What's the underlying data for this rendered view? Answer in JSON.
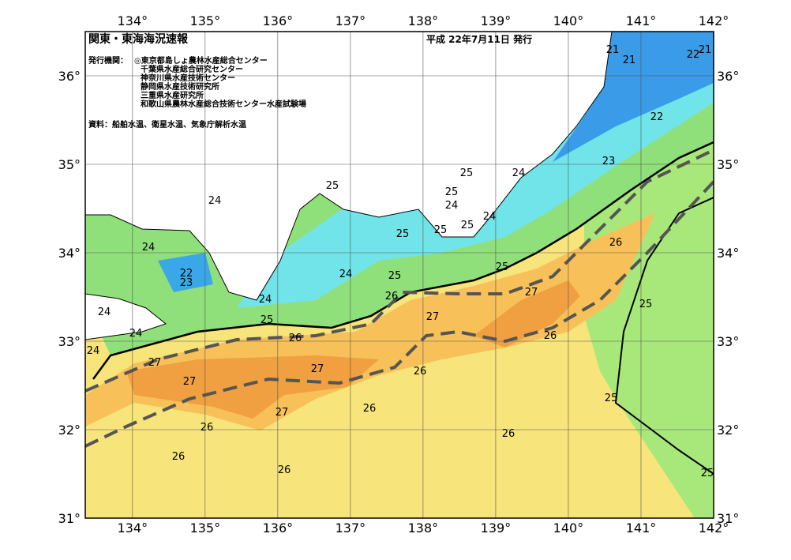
{
  "header": {
    "title": "関東・東海海況速報",
    "issued": "平成 22年7月11日 発行"
  },
  "publishers": {
    "label": "発行機関：",
    "items": [
      "◎東京都島しょ農林水産総合センター",
      "千葉県水産総合研究センター",
      "神奈川県水産技術センター",
      "静岡県水産技術研究所",
      "三重県水産研究所",
      "和歌山県農林水産総合技術センター水産試験場"
    ]
  },
  "sources": "資料：船舶水温、衛星水温、気象庁解析水温",
  "map": {
    "xlim": [
      133.35,
      142
    ],
    "ylim": [
      31,
      36.5
    ],
    "xticks": [
      {
        "value": 134,
        "label": "134°"
      },
      {
        "value": 135,
        "label": "135°"
      },
      {
        "value": 136,
        "label": "136°"
      },
      {
        "value": 137,
        "label": "137°"
      },
      {
        "value": 138,
        "label": "138°"
      },
      {
        "value": 139,
        "label": "139°"
      },
      {
        "value": 140,
        "label": "140°"
      },
      {
        "value": 141,
        "label": "141°"
      },
      {
        "value": 142,
        "label": "142°"
      }
    ],
    "yticks": [
      {
        "value": 31,
        "label": "31°"
      },
      {
        "value": 32,
        "label": "32°"
      },
      {
        "value": 33,
        "label": "33°"
      },
      {
        "value": 34,
        "label": "34°"
      },
      {
        "value": 35,
        "label": "35°"
      },
      {
        "value": 36,
        "label": "36°"
      }
    ],
    "contour_labels": [
      21,
      21,
      22,
      21,
      22,
      23,
      24,
      25,
      25,
      24,
      25,
      24,
      24,
      25,
      25,
      25,
      24,
      26,
      22,
      23,
      24,
      25,
      25,
      24,
      26,
      27,
      25,
      24,
      27,
      25,
      26,
      24,
      26,
      24,
      27,
      27,
      26,
      27,
      25,
      26,
      27,
      26,
      26,
      26,
      26,
      25
    ]
  }
}
